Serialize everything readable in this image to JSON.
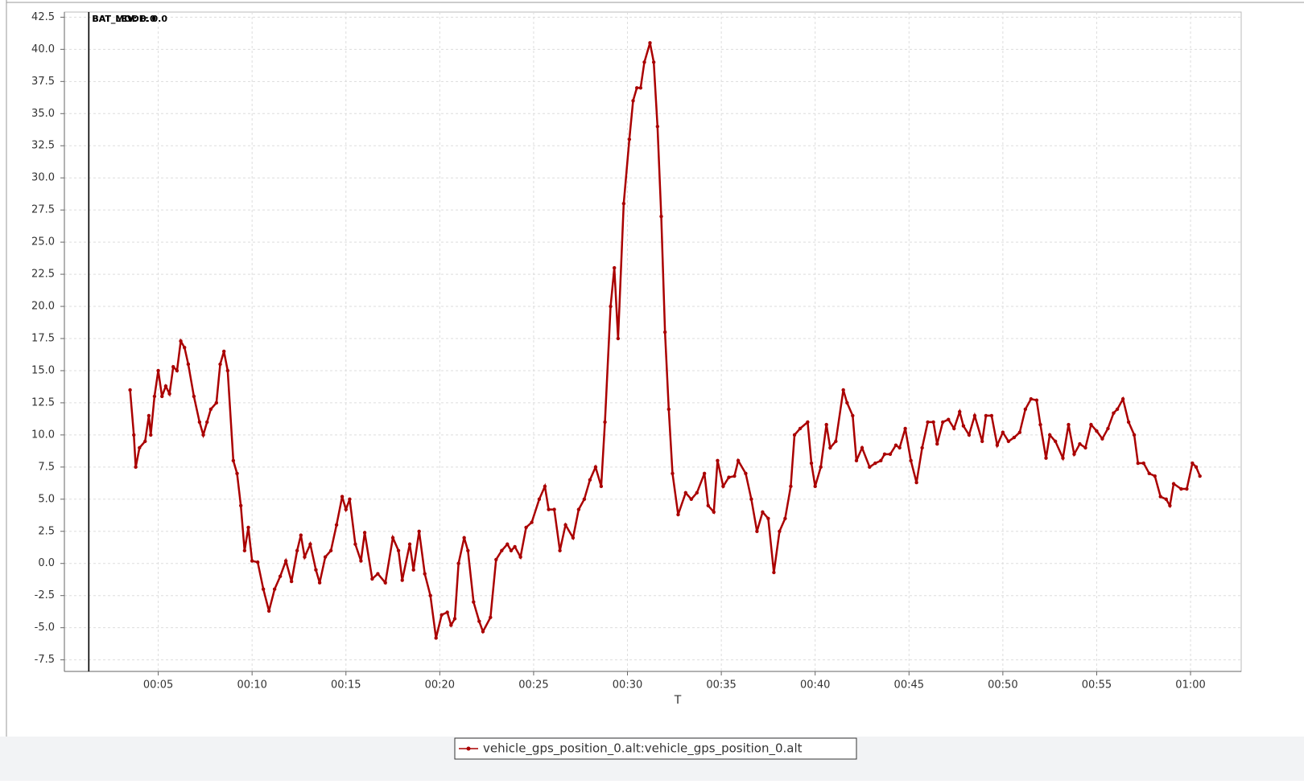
{
  "chart_data": {
    "type": "line",
    "xlabel": "T",
    "annotations": [
      {
        "text": "BAT_MODE: 0.0",
        "x": 1.3
      },
      {
        "text": "BAT_LEV: 0.0",
        "x": 1.3
      }
    ],
    "x": [
      3.5,
      3.7,
      3.8,
      4.0,
      4.3,
      4.5,
      4.6,
      4.8,
      5.0,
      5.2,
      5.4,
      5.6,
      5.8,
      6.0,
      6.2,
      6.4,
      6.6,
      6.9,
      7.2,
      7.4,
      7.6,
      7.8,
      8.1,
      8.3,
      8.5,
      8.7,
      9.0,
      9.2,
      9.4,
      9.6,
      9.8,
      10.0,
      10.3,
      10.6,
      10.9,
      11.2,
      11.5,
      11.8,
      12.1,
      12.4,
      12.6,
      12.8,
      13.1,
      13.4,
      13.6,
      13.9,
      14.2,
      14.5,
      14.8,
      15.0,
      15.2,
      15.5,
      15.8,
      16.0,
      16.4,
      16.7,
      17.1,
      17.5,
      17.8,
      18.0,
      18.4,
      18.6,
      18.9,
      19.2,
      19.5,
      19.8,
      20.1,
      20.4,
      20.6,
      20.8,
      21.0,
      21.3,
      21.5,
      21.8,
      22.1,
      22.3,
      22.7,
      23.0,
      23.3,
      23.6,
      23.8,
      24.0,
      24.3,
      24.6,
      24.9,
      25.3,
      25.6,
      25.8,
      26.1,
      26.4,
      26.7,
      27.1,
      27.4,
      27.7,
      28.0,
      28.3,
      28.6,
      28.8,
      29.1,
      29.3,
      29.5,
      29.8,
      30.1,
      30.3,
      30.5,
      30.7,
      30.9,
      31.2,
      31.4,
      31.6,
      31.8,
      32.0,
      32.2,
      32.4,
      32.7,
      33.1,
      33.4,
      33.7,
      34.1,
      34.3,
      34.6,
      34.8,
      35.1,
      35.4,
      35.7,
      35.9,
      36.3,
      36.6,
      36.9,
      37.2,
      37.5,
      37.8,
      38.1,
      38.4,
      38.7,
      38.9,
      39.2,
      39.6,
      39.8,
      40.0,
      40.3,
      40.6,
      40.8,
      41.1,
      41.5,
      41.7,
      42.0,
      42.2,
      42.5,
      42.9,
      43.2,
      43.5,
      43.7,
      44.0,
      44.3,
      44.5,
      44.8,
      45.1,
      45.4,
      45.7,
      46.0,
      46.3,
      46.5,
      46.8,
      47.1,
      47.4,
      47.7,
      47.9,
      48.2,
      48.5,
      48.9,
      49.1,
      49.4,
      49.7,
      50.0,
      50.3,
      50.6,
      50.9,
      51.2,
      51.5,
      51.8,
      52.0,
      52.3,
      52.5,
      52.8,
      53.2,
      53.5,
      53.8,
      54.1,
      54.4,
      54.7,
      55.0,
      55.3,
      55.6,
      55.9,
      56.1,
      56.4,
      56.7,
      57.0,
      57.2,
      57.5,
      57.8,
      58.1,
      58.4,
      58.7,
      58.9,
      59.1,
      59.5,
      59.8,
      60.1,
      60.3,
      60.5
    ],
    "series": [
      {
        "name": "vehicle_gps_position_0.alt:vehicle_gps_position_0.alt",
        "color": "#aa0000",
        "values": [
          13.5,
          10,
          7.5,
          9,
          9.5,
          11.5,
          10,
          13,
          15,
          13,
          13.8,
          13.2,
          15.3,
          15,
          17.3,
          16.8,
          15.5,
          13,
          11,
          10,
          11,
          12,
          12.5,
          15.5,
          16.5,
          15,
          8,
          7,
          4.5,
          1,
          2.8,
          0.2,
          0.1,
          -2,
          -3.7,
          -2,
          -1,
          0.2,
          -1.4,
          1,
          2.2,
          0.5,
          1.5,
          -0.5,
          -1.5,
          0.5,
          1,
          3,
          5.2,
          4.2,
          5,
          1.5,
          0.2,
          2.4,
          -1.2,
          -0.8,
          -1.5,
          2,
          1,
          -1.3,
          1.5,
          -0.5,
          2.5,
          -0.8,
          -2.5,
          -5.8,
          -4,
          -3.8,
          -4.8,
          -4.3,
          0,
          2,
          1,
          -3,
          -4.5,
          -5.3,
          -4.2,
          0.3,
          1,
          1.5,
          1,
          1.3,
          0.5,
          2.8,
          3.2,
          5,
          6,
          4.2,
          4.2,
          1,
          3,
          2,
          4.2,
          5,
          6.5,
          7.5,
          6,
          11,
          20,
          23,
          17.5,
          28,
          33,
          36,
          37,
          37,
          39,
          40.5,
          39,
          34,
          27,
          18,
          12,
          7,
          3.8,
          5.5,
          5,
          5.5,
          7,
          4.5,
          4,
          8,
          6,
          6.7,
          6.8,
          8,
          7,
          5,
          2.5,
          4,
          3.5,
          -0.7,
          2.5,
          3.5,
          6,
          10,
          10.5,
          11,
          7.8,
          6,
          7.5,
          10.8,
          9,
          9.5,
          13.5,
          12.5,
          11.5,
          8,
          9,
          7.5,
          7.8,
          8,
          8.5,
          8.5,
          9.2,
          9,
          10.5,
          8,
          6.3,
          9,
          11,
          11,
          9.3,
          11,
          11.2,
          10.5,
          11.8,
          10.7,
          10,
          11.5,
          9.5,
          11.5,
          11.5,
          9.2,
          10.2,
          9.5,
          9.8,
          10.2,
          12,
          12.8,
          12.7,
          10.8,
          8.2,
          10,
          9.5,
          8.2,
          10.8,
          8.5,
          9.3,
          9,
          10.8,
          10.3,
          9.7,
          10.5,
          11.7,
          12,
          12.8,
          11,
          10,
          7.8,
          7.8,
          7,
          6.8,
          5.2,
          5,
          4.5,
          6.2,
          5.8,
          5.8,
          7.8,
          7.5,
          6.8
        ]
      }
    ],
    "xlim": [
      0,
      62.7
    ],
    "ylim": [
      -8.4,
      42.9
    ],
    "xticks": [
      {
        "value": 5,
        "label": "00:05"
      },
      {
        "value": 10,
        "label": "00:10"
      },
      {
        "value": 15,
        "label": "00:15"
      },
      {
        "value": 20,
        "label": "00:20"
      },
      {
        "value": 25,
        "label": "00:25"
      },
      {
        "value": 30,
        "label": "00:30"
      },
      {
        "value": 35,
        "label": "00:35"
      },
      {
        "value": 40,
        "label": "00:40"
      },
      {
        "value": 45,
        "label": "00:45"
      },
      {
        "value": 50,
        "label": "00:50"
      },
      {
        "value": 55,
        "label": "00:55"
      },
      {
        "value": 60,
        "label": "01:00"
      }
    ],
    "yticks": [
      {
        "value": -7.5,
        "label": "-7.5"
      },
      {
        "value": -5,
        "label": "-5.0"
      },
      {
        "value": -2.5,
        "label": "-2.5"
      },
      {
        "value": 0,
        "label": "0.0"
      },
      {
        "value": 2.5,
        "label": "2.5"
      },
      {
        "value": 5,
        "label": "5.0"
      },
      {
        "value": 7.5,
        "label": "7.5"
      },
      {
        "value": 10,
        "label": "10.0"
      },
      {
        "value": 12.5,
        "label": "12.5"
      },
      {
        "value": 15,
        "label": "15.0"
      },
      {
        "value": 17.5,
        "label": "17.5"
      },
      {
        "value": 20,
        "label": "20.0"
      },
      {
        "value": 22.5,
        "label": "22.5"
      },
      {
        "value": 25,
        "label": "25.0"
      },
      {
        "value": 27.5,
        "label": "27.5"
      },
      {
        "value": 30,
        "label": "30.0"
      },
      {
        "value": 32.5,
        "label": "32.5"
      },
      {
        "value": 35,
        "label": "35.0"
      },
      {
        "value": 37.5,
        "label": "37.5"
      },
      {
        "value": 40,
        "label": "40.0"
      },
      {
        "value": 42.5,
        "label": "42.5"
      }
    ],
    "grid": true
  }
}
